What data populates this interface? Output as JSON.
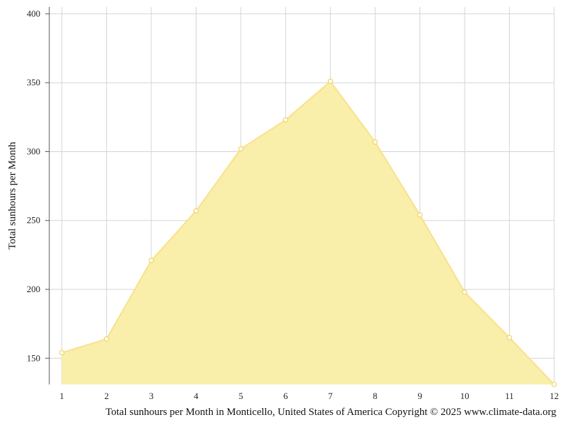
{
  "chart_data": {
    "type": "area",
    "x": [
      1,
      2,
      3,
      4,
      5,
      6,
      7,
      8,
      9,
      10,
      11,
      12
    ],
    "series": [
      {
        "values": [
          154,
          164,
          221,
          257,
          302,
          323,
          351,
          307,
          254,
          198,
          165,
          131
        ]
      }
    ],
    "ylabel": "Total sunhours per Month",
    "xlabel": "",
    "caption": "Total sunhours per Month in Monticello, United States of America Copyright © 2025 www.climate-data.org",
    "ylim": [
      131,
      405
    ],
    "yticks": [
      150,
      200,
      250,
      300,
      350,
      400
    ],
    "grid": true,
    "colors": {
      "fill": "#f9eeaa",
      "line": "#f8e28a",
      "marker_fill": "#ffffff",
      "marker_stroke": "#f2d45c",
      "grid": "#d4d4d4",
      "axis": "#555555"
    }
  }
}
